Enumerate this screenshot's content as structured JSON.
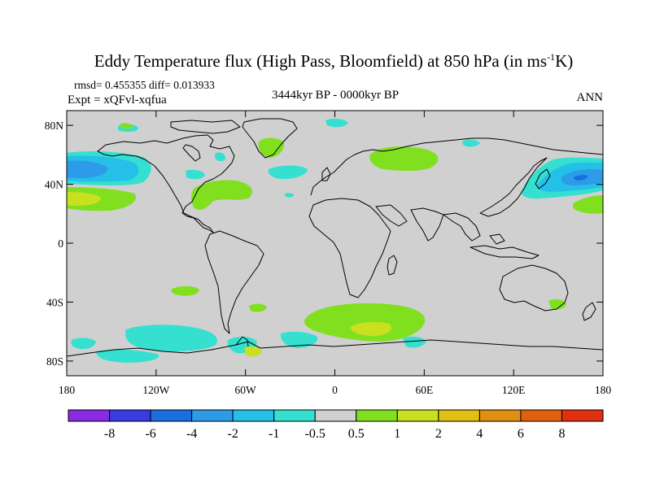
{
  "header": {
    "title_main": "Eddy Temperature flux (High Pass, Bloomfield) at 850 hPa (in ms",
    "title_sup": "-1",
    "title_end": "K)",
    "stats": "rmsd= 0.455355 diff= 0.013933",
    "experiment": "Expt = xQFvl-xqfua",
    "period": "3444kyr BP - 0000kyr BP",
    "season": "ANN"
  },
  "axes": {
    "y_ticks": [
      {
        "lat": 80,
        "label": "80N"
      },
      {
        "lat": 40,
        "label": "40N"
      },
      {
        "lat": 0,
        "label": "0"
      },
      {
        "lat": -40,
        "label": "40S"
      },
      {
        "lat": -80,
        "label": "80S"
      }
    ],
    "x_ticks": [
      {
        "lon": -180,
        "label": "180"
      },
      {
        "lon": -120,
        "label": "120W"
      },
      {
        "lon": -60,
        "label": "60W"
      },
      {
        "lon": 0,
        "label": "0"
      },
      {
        "lon": 60,
        "label": "60E"
      },
      {
        "lon": 120,
        "label": "120E"
      },
      {
        "lon": 180,
        "label": "180"
      }
    ],
    "lon_range": [
      -180,
      180
    ],
    "lat_range": [
      -90,
      90
    ]
  },
  "colorbar": {
    "colors": [
      "#8a2be2",
      "#3a3adf",
      "#1a6fe0",
      "#2e9be8",
      "#25c0e8",
      "#35e0d0",
      "#d0d0d0",
      "#80e020",
      "#c8e020",
      "#e0c010",
      "#e09010",
      "#e06010",
      "#e03010"
    ],
    "labels": [
      "-8",
      "-6",
      "-4",
      "-2",
      "-1",
      "-0.5",
      "0.5",
      "1",
      "2",
      "4",
      "6",
      "8"
    ]
  },
  "colors": {
    "land_and_neutral": "#d0d0d0",
    "coast": "#000000"
  }
}
